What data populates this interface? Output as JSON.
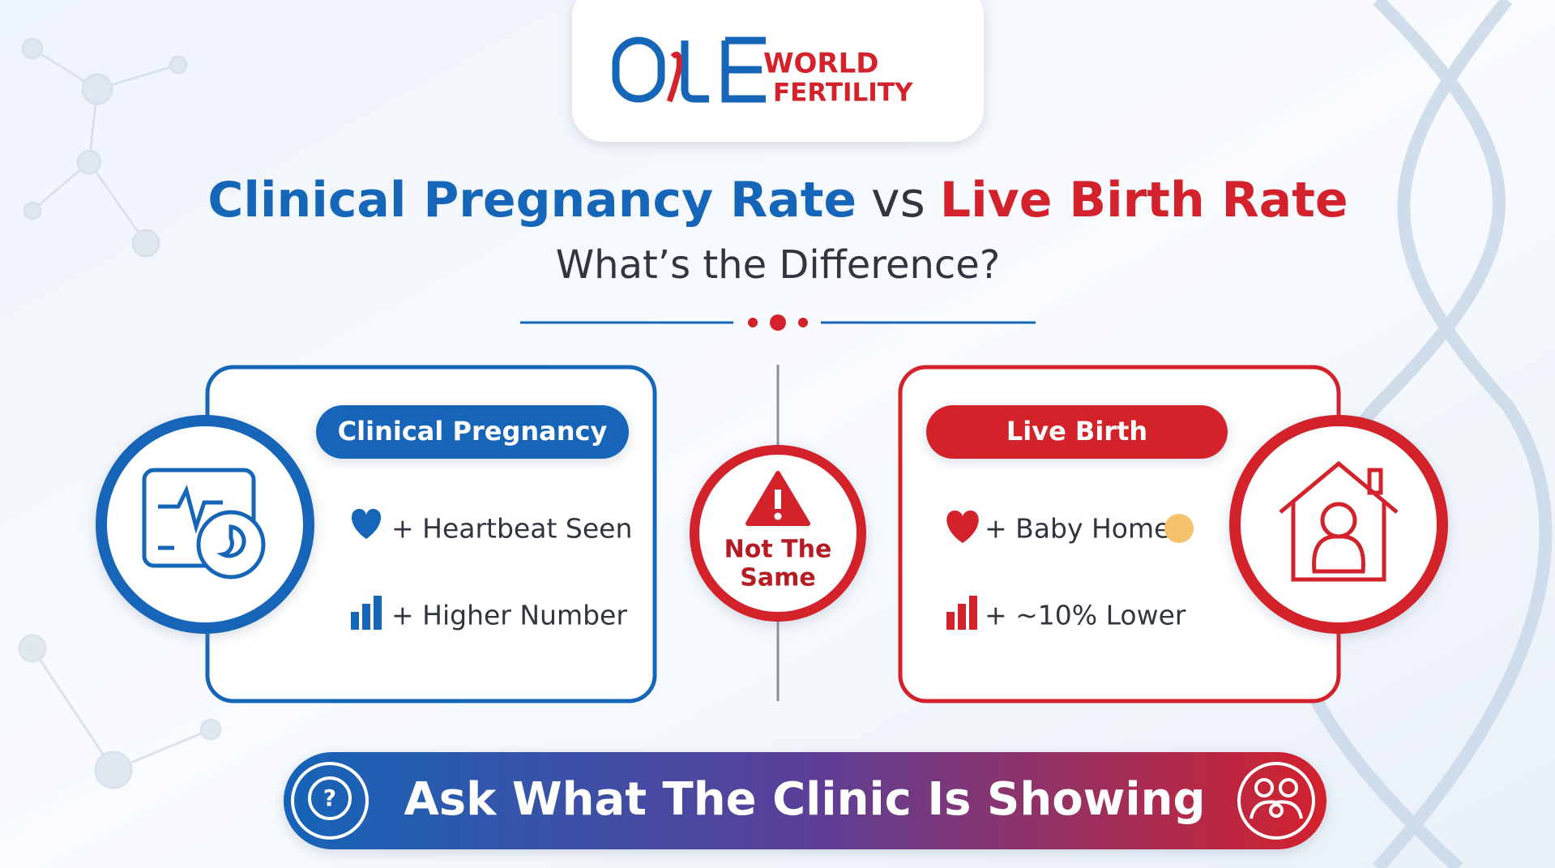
{
  "logo": {
    "line1": "WORLD",
    "line2": "FERTILITY"
  },
  "header": {
    "title_left": "Clinical Pregnancy Rate",
    "title_mid": "vs",
    "title_right": "Live Birth Rate",
    "subtitle": "What’s the Difference?"
  },
  "left_card": {
    "heading": "Clinical Pregnancy",
    "items": [
      "+ Heartbeat Seen",
      "+ Higher Number"
    ]
  },
  "center": {
    "lines": [
      "Not The",
      "Same"
    ]
  },
  "right_card": {
    "heading": "Live Birth",
    "items": [
      "+ Baby Home",
      "+ ~10% Lower"
    ]
  },
  "banner": {
    "text": "Ask What The Clinic Is Showing"
  }
}
